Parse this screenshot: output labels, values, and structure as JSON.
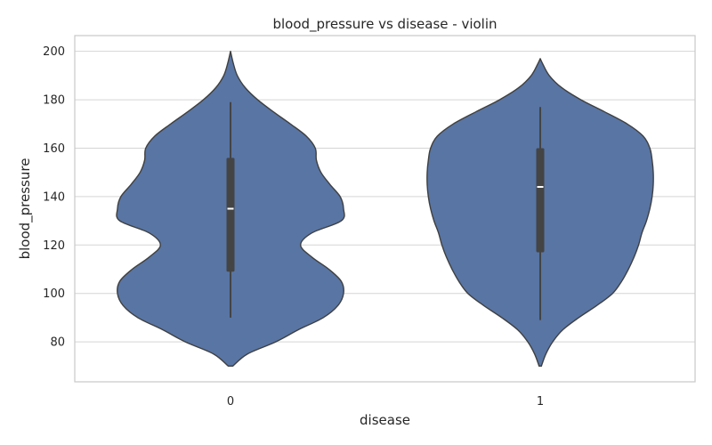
{
  "chart_data": {
    "type": "violin",
    "title": "blood_pressure vs disease - violin",
    "xlabel": "disease",
    "ylabel": "blood_pressure",
    "categories": [
      "0",
      "1"
    ],
    "ylim": [
      63.5,
      206.5
    ],
    "yticks": [
      80,
      100,
      120,
      140,
      160,
      180,
      200
    ],
    "grid": true,
    "colors": {
      "fill": "#5875a4",
      "edge": "#3f3f3f",
      "box": "#444444",
      "median": "#ffffff",
      "grid": "#d5d5d5",
      "spine": "#c8c8c8"
    },
    "violins": [
      {
        "category": "0",
        "median": 135,
        "q1": 109,
        "q3": 156,
        "whisker_low": 90,
        "whisker_high": 179,
        "y_min": 69.5,
        "y_max": 200,
        "density": [
          [
            70,
            0.02
          ],
          [
            75,
            0.15
          ],
          [
            80,
            0.4
          ],
          [
            85,
            0.6
          ],
          [
            90,
            0.82
          ],
          [
            95,
            0.95
          ],
          [
            100,
            1.0
          ],
          [
            105,
            0.98
          ],
          [
            110,
            0.87
          ],
          [
            115,
            0.72
          ],
          [
            120,
            0.62
          ],
          [
            125,
            0.72
          ],
          [
            130,
            0.98
          ],
          [
            135,
            1.0
          ],
          [
            140,
            0.97
          ],
          [
            145,
            0.88
          ],
          [
            150,
            0.8
          ],
          [
            155,
            0.76
          ],
          [
            160,
            0.75
          ],
          [
            165,
            0.67
          ],
          [
            170,
            0.53
          ],
          [
            175,
            0.38
          ],
          [
            180,
            0.24
          ],
          [
            185,
            0.13
          ],
          [
            190,
            0.06
          ],
          [
            195,
            0.025
          ],
          [
            200,
            0.0
          ]
        ]
      },
      {
        "category": "1",
        "median": 144,
        "q1": 117,
        "q3": 160,
        "whisker_low": 89,
        "whisker_high": 177,
        "y_min": 70,
        "y_max": 197,
        "density": [
          [
            70,
            0.01
          ],
          [
            75,
            0.05
          ],
          [
            80,
            0.11
          ],
          [
            85,
            0.2
          ],
          [
            90,
            0.34
          ],
          [
            95,
            0.5
          ],
          [
            100,
            0.64
          ],
          [
            105,
            0.72
          ],
          [
            110,
            0.78
          ],
          [
            115,
            0.83
          ],
          [
            120,
            0.87
          ],
          [
            125,
            0.9
          ],
          [
            130,
            0.94
          ],
          [
            135,
            0.97
          ],
          [
            140,
            0.99
          ],
          [
            145,
            1.0
          ],
          [
            150,
            1.0
          ],
          [
            155,
            0.99
          ],
          [
            160,
            0.97
          ],
          [
            165,
            0.91
          ],
          [
            170,
            0.77
          ],
          [
            175,
            0.57
          ],
          [
            180,
            0.36
          ],
          [
            185,
            0.19
          ],
          [
            190,
            0.08
          ],
          [
            195,
            0.02
          ],
          [
            197,
            0.0
          ]
        ]
      }
    ]
  }
}
